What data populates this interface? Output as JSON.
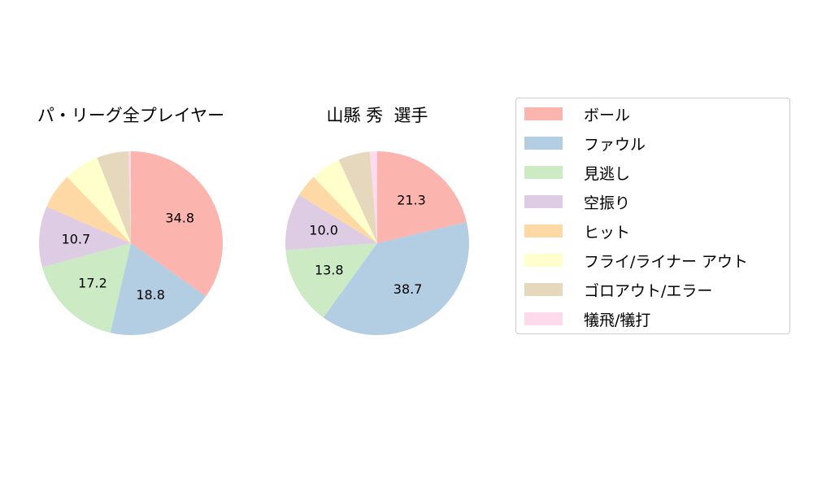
{
  "chart_data": [
    {
      "type": "pie",
      "title": "パ・リーグ全プレイヤー",
      "categories": [
        "ボール",
        "ファウル",
        "見逃し",
        "空振り",
        "ヒット",
        "フライ/ライナー アウト",
        "ゴロアウト/エラー",
        "犠飛/犠打"
      ],
      "values": [
        34.8,
        18.8,
        17.2,
        10.7,
        6.3,
        6.2,
        5.6,
        0.4
      ],
      "labels": [
        "34.8",
        "18.8",
        "17.2",
        "10.7",
        "",
        "",
        "",
        ""
      ],
      "start_angle": 90,
      "direction": "clockwise"
    },
    {
      "type": "pie",
      "title": "山縣 秀  選手",
      "categories": [
        "ボール",
        "ファウル",
        "見逃し",
        "空振り",
        "ヒット",
        "フライ/ライナー アウト",
        "ゴロアウト/エラー",
        "犠飛/犠打"
      ],
      "values": [
        21.3,
        38.7,
        13.8,
        10.0,
        4.0,
        5.3,
        5.6,
        1.3
      ],
      "labels": [
        "21.3",
        "38.7",
        "13.8",
        "10.0",
        "",
        "",
        "",
        ""
      ],
      "start_angle": 90,
      "direction": "clockwise"
    }
  ],
  "colors": [
    "#fbb4ae",
    "#b3cde3",
    "#ccebc5",
    "#decbe4",
    "#fed9a6",
    "#ffffcc",
    "#e5d8bd",
    "#fddaec"
  ],
  "charts": {
    "left_title": "パ・リーグ全プレイヤー",
    "right_title": "山縣 秀  選手"
  },
  "legend": {
    "items": [
      {
        "label": "ボール",
        "color": "#fbb4ae"
      },
      {
        "label": "ファウル",
        "color": "#b3cde3"
      },
      {
        "label": "見逃し",
        "color": "#ccebc5"
      },
      {
        "label": "空振り",
        "color": "#decbe4"
      },
      {
        "label": "ヒット",
        "color": "#fed9a6"
      },
      {
        "label": "フライ/ライナー アウト",
        "color": "#ffffcc"
      },
      {
        "label": "ゴロアウト/エラー",
        "color": "#e5d8bd"
      },
      {
        "label": "犠飛/犠打",
        "color": "#fddaec"
      }
    ]
  }
}
